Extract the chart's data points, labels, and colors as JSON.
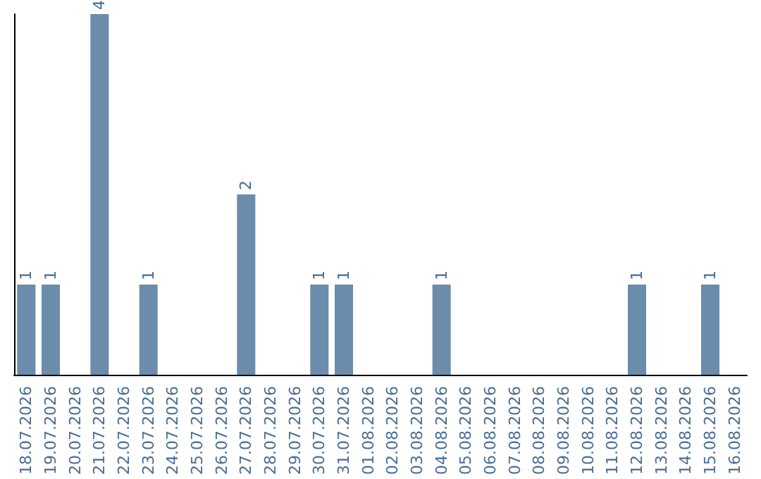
{
  "chart_data": {
    "type": "bar",
    "categories": [
      "18.07.2026",
      "19.07.2026",
      "20.07.2026",
      "21.07.2026",
      "22.07.2026",
      "23.07.2026",
      "24.07.2026",
      "25.07.2026",
      "26.07.2026",
      "27.07.2026",
      "28.07.2026",
      "29.07.2026",
      "30.07.2026",
      "31.07.2026",
      "01.08.2026",
      "02.08.2026",
      "03.08.2026",
      "04.08.2026",
      "05.08.2026",
      "06.08.2026",
      "07.08.2026",
      "08.08.2026",
      "09.08.2026",
      "10.08.2026",
      "11.08.2026",
      "12.08.2026",
      "13.08.2026",
      "14.08.2026",
      "15.08.2026",
      "16.08.2026"
    ],
    "values": [
      1,
      1,
      0,
      4,
      0,
      1,
      0,
      0,
      0,
      2,
      0,
      0,
      1,
      1,
      0,
      0,
      0,
      1,
      0,
      0,
      0,
      0,
      0,
      0,
      0,
      1,
      0,
      0,
      1,
      0
    ],
    "value_labels": [
      "1",
      "1",
      null,
      "4",
      null,
      "1",
      null,
      null,
      null,
      "2",
      null,
      null,
      "1",
      "1",
      null,
      null,
      null,
      "1",
      null,
      null,
      null,
      null,
      null,
      null,
      null,
      "1",
      null,
      null,
      "1",
      null
    ],
    "color": "#6b8cab",
    "grid": false,
    "tick_labels": "x"
  }
}
